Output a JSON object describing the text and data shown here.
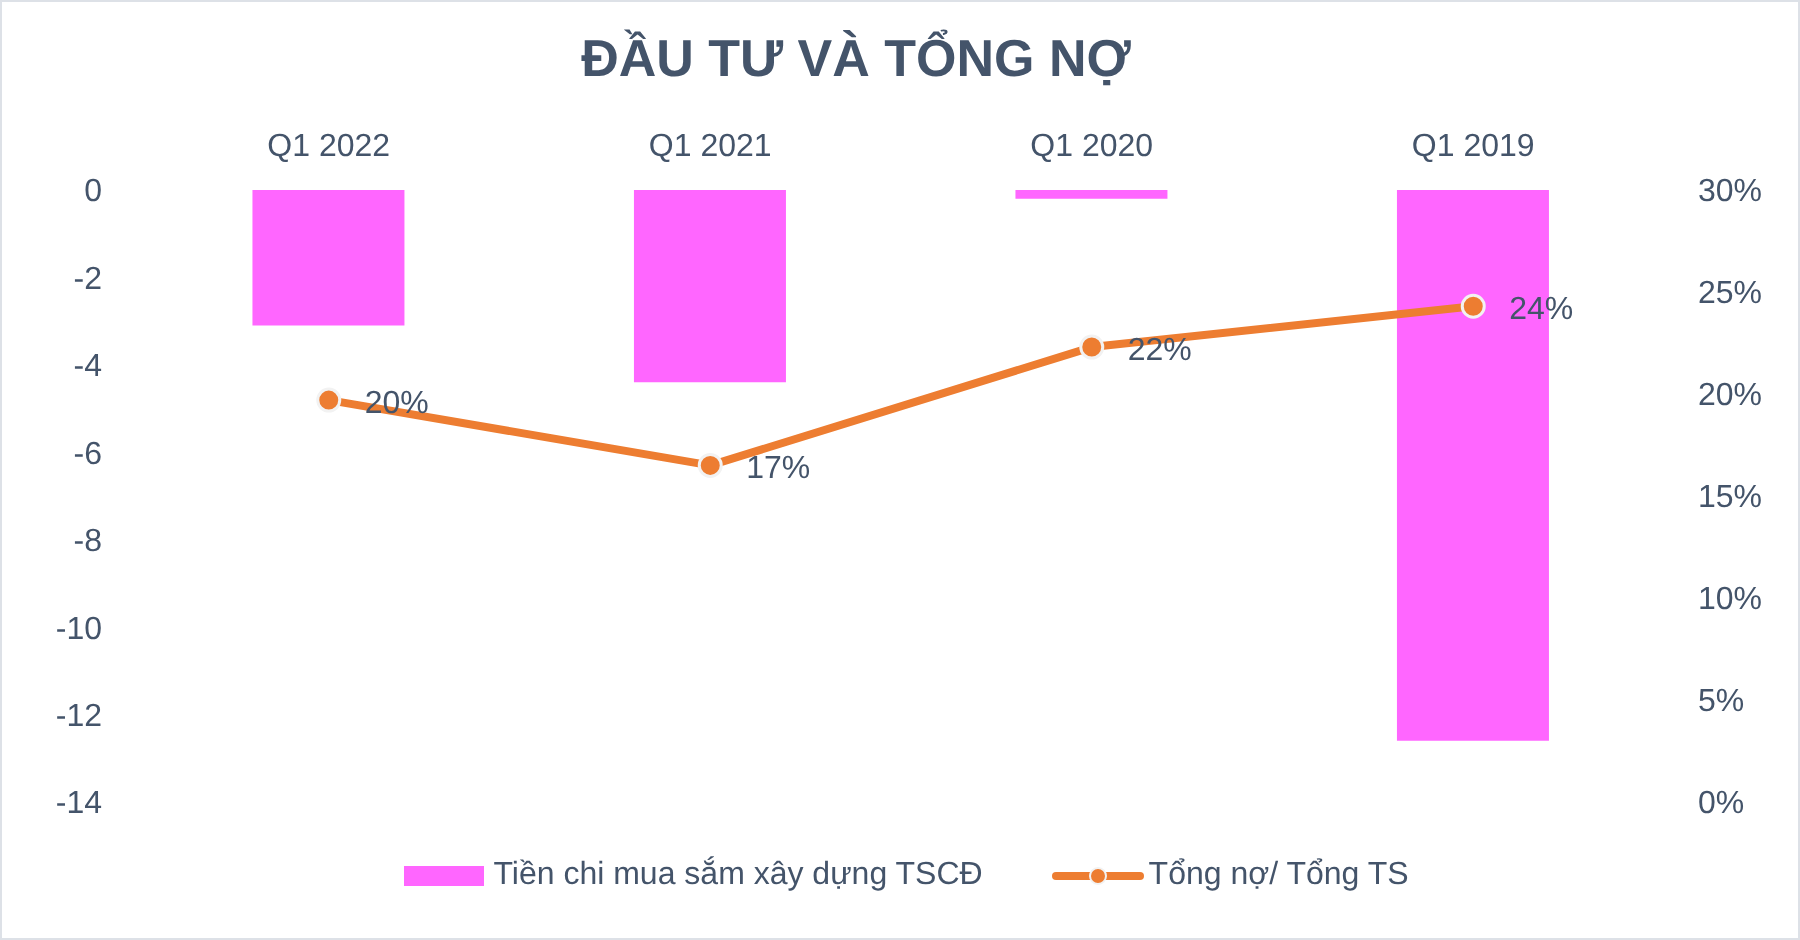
{
  "chart_data": {
    "type": "bar",
    "title": "ĐẦU TƯ VÀ TỔNG NỢ",
    "categories": [
      "Q1 2022",
      "Q1 2021",
      "Q1 2020",
      "Q1 2019"
    ],
    "series": [
      {
        "name": "Tiền chi mua sắm xây dựng TSCĐ",
        "color": "#ff66ff",
        "values": [
          -3.1,
          -4.4,
          -0.2,
          -12.6
        ]
      },
      {
        "name": "Tổng nợ/ Tổng TS",
        "type": "line",
        "axis": "y2",
        "color": "#ed7d31",
        "values": [
          19.7,
          16.5,
          22.3,
          24.3
        ],
        "value_labels": [
          "20%",
          "17%",
          "22%",
          "24%"
        ]
      }
    ],
    "ylim": [
      -14,
      0
    ],
    "yticks": [
      -14,
      -12,
      -10,
      -8,
      -6,
      -4,
      -2,
      0
    ],
    "y2lim": [
      0,
      30
    ],
    "y2ticks": [
      {
        "value": 0,
        "label": "0%"
      },
      {
        "value": 5,
        "label": "5%"
      },
      {
        "value": 10,
        "label": "10%"
      },
      {
        "value": 15,
        "label": "15%"
      },
      {
        "value": 20,
        "label": "20%"
      },
      {
        "value": 25,
        "label": "25%"
      },
      {
        "value": 30,
        "label": "30%"
      }
    ],
    "legend": "bottom",
    "marker": "circle"
  }
}
